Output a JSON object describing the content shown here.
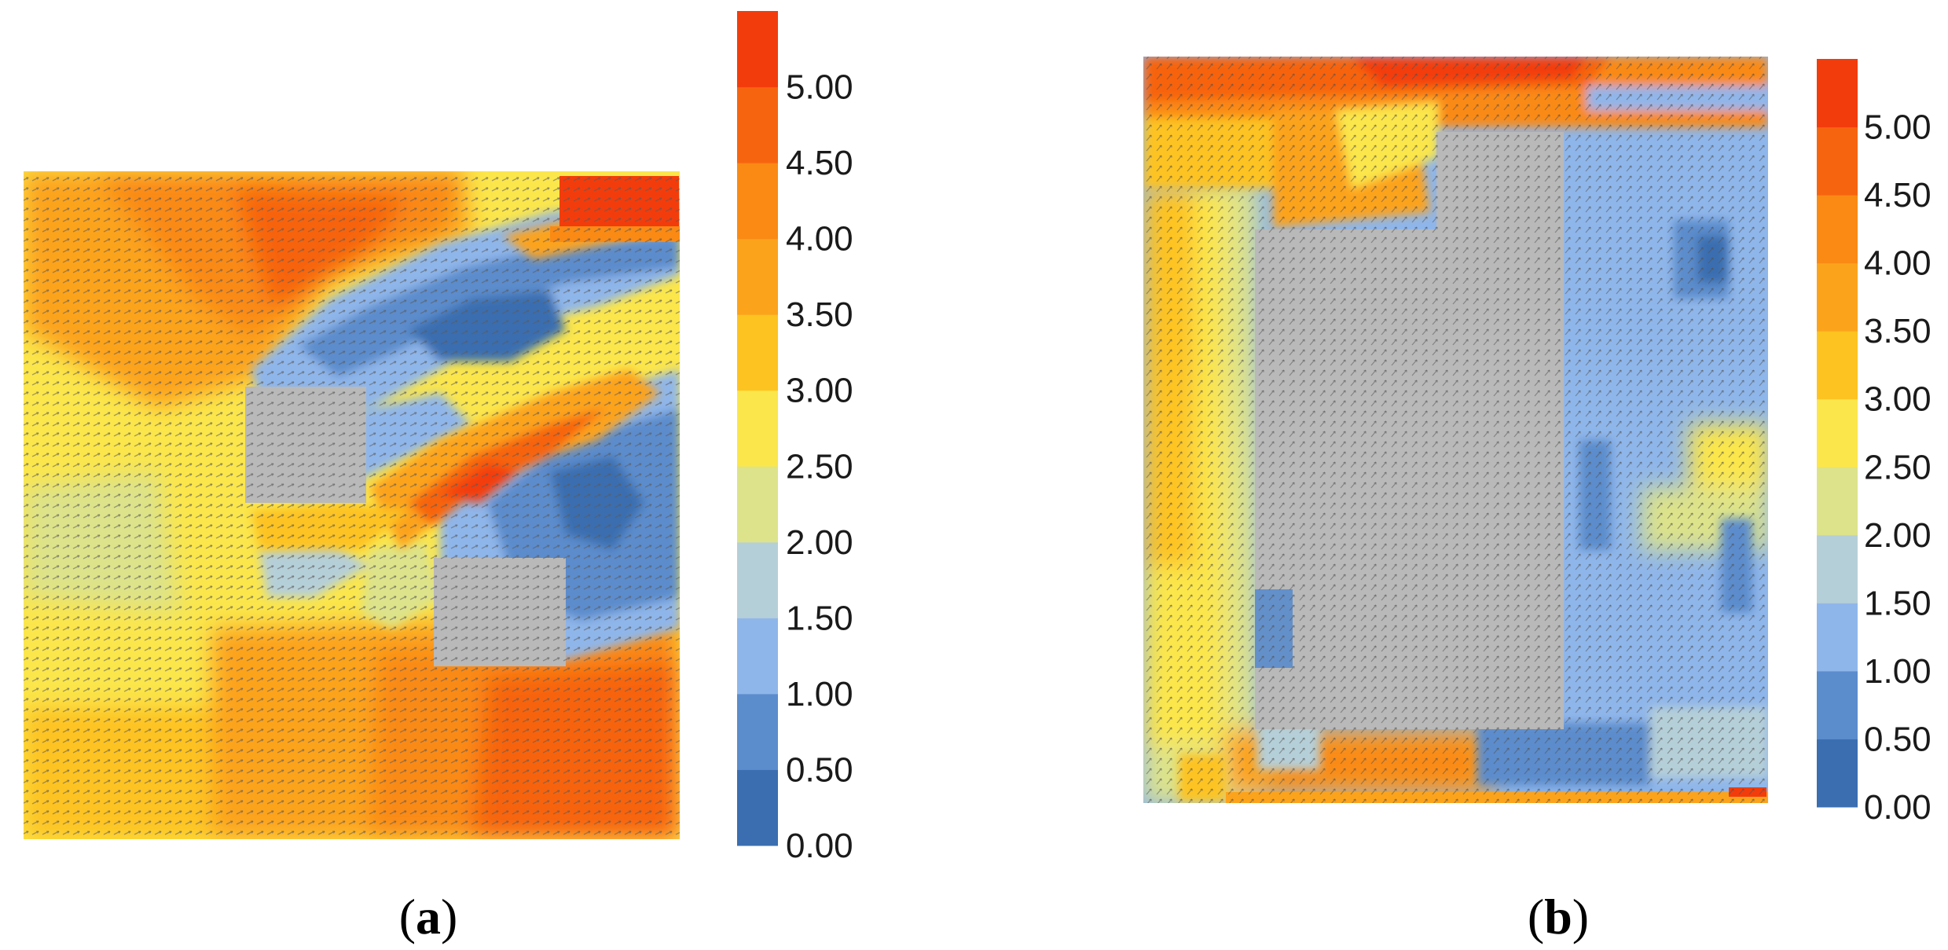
{
  "chart_data": [
    {
      "type": "heatmap",
      "panel_label": "a",
      "colorbar": {
        "tick_labels": [
          "0.00",
          "0.50",
          "1.00",
          "1.50",
          "2.00",
          "2.50",
          "3.00",
          "3.50",
          "4.00",
          "4.50",
          "5.00"
        ],
        "bands": [
          {
            "from": 0.0,
            "to": 0.5,
            "color": "#3a6eb0"
          },
          {
            "from": 0.5,
            "to": 1.0,
            "color": "#5b8ccc"
          },
          {
            "from": 1.0,
            "to": 1.5,
            "color": "#8fb6ea"
          },
          {
            "from": 1.5,
            "to": 2.0,
            "color": "#b5cfd8"
          },
          {
            "from": 2.0,
            "to": 2.5,
            "color": "#dde38a"
          },
          {
            "from": 2.5,
            "to": 3.0,
            "color": "#fbe64c"
          },
          {
            "from": 3.0,
            "to": 3.5,
            "color": "#fdc320"
          },
          {
            "from": 3.5,
            "to": 4.0,
            "color": "#fca31c"
          },
          {
            "from": 4.0,
            "to": 4.5,
            "color": "#fa8a14"
          },
          {
            "from": 4.5,
            "to": 5.0,
            "color": "#f7640f"
          },
          {
            "from": 5.0,
            "to": 5.5,
            "color": "#f33c0c"
          }
        ]
      },
      "obstacle_color": "#b9b9b9"
    },
    {
      "type": "heatmap",
      "panel_label": "b",
      "colorbar": {
        "tick_labels": [
          "0.00",
          "0.50",
          "1.00",
          "1.50",
          "2.00",
          "2.50",
          "3.00",
          "3.50",
          "4.00",
          "4.50",
          "5.00"
        ],
        "bands": [
          {
            "from": 0.0,
            "to": 0.5,
            "color": "#3a6eb0"
          },
          {
            "from": 0.5,
            "to": 1.0,
            "color": "#5b8ccc"
          },
          {
            "from": 1.0,
            "to": 1.5,
            "color": "#8fb6ea"
          },
          {
            "from": 1.5,
            "to": 2.0,
            "color": "#b5cfd8"
          },
          {
            "from": 2.0,
            "to": 2.5,
            "color": "#dde38a"
          },
          {
            "from": 2.5,
            "to": 3.0,
            "color": "#fbe64c"
          },
          {
            "from": 3.0,
            "to": 3.5,
            "color": "#fdc320"
          },
          {
            "from": 3.5,
            "to": 4.0,
            "color": "#fca31c"
          },
          {
            "from": 4.0,
            "to": 4.5,
            "color": "#fa8a14"
          },
          {
            "from": 4.5,
            "to": 5.0,
            "color": "#f7640f"
          },
          {
            "from": 5.0,
            "to": 5.5,
            "color": "#f33c0c"
          }
        ]
      },
      "obstacle_color": "#b9b9b9"
    }
  ]
}
